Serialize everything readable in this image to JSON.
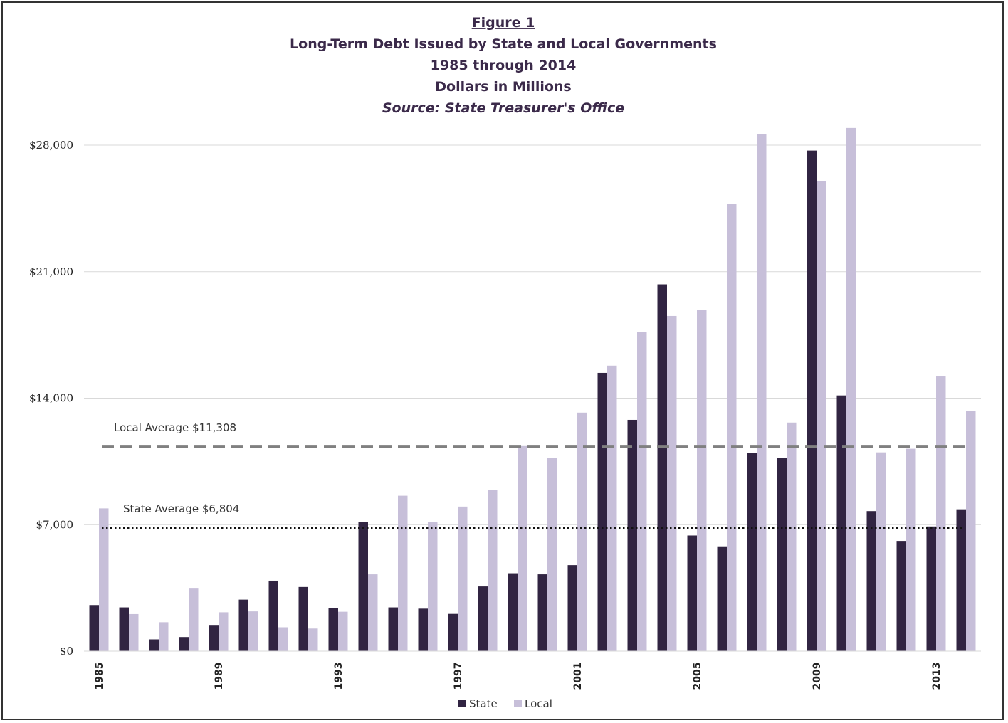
{
  "chart_data": {
    "type": "bar",
    "title_lines": [
      "Figure 1",
      "Long-Term Debt Issued by State and Local Governments",
      "1985 through 2014",
      "Dollars in Millions",
      "Source:  State Treasurer's Office"
    ],
    "years": [
      1985,
      1986,
      1987,
      1988,
      1989,
      1990,
      1991,
      1992,
      1993,
      1994,
      1995,
      1996,
      1997,
      1998,
      1999,
      2000,
      2001,
      2002,
      2003,
      2004,
      2005,
      2006,
      2007,
      2008,
      2009,
      2010,
      2011,
      2012,
      2013,
      2014
    ],
    "x_tick_labels": [
      "1985",
      "1989",
      "1993",
      "1997",
      "2001",
      "2005",
      "2009",
      "2013"
    ],
    "x_tick_years": [
      1985,
      1989,
      1993,
      1997,
      2001,
      2005,
      2009,
      2013
    ],
    "series": [
      {
        "name": "State",
        "color": "#312442",
        "values": [
          2550,
          2420,
          650,
          780,
          1450,
          2850,
          3900,
          3550,
          2400,
          7150,
          2420,
          2350,
          2060,
          3580,
          4310,
          4250,
          4760,
          15400,
          12800,
          20300,
          6400,
          5800,
          10950,
          10700,
          27700,
          14150,
          7750,
          6100,
          6900,
          7850
        ]
      },
      {
        "name": "Local",
        "color": "#c7bfd9",
        "values": [
          7900,
          2050,
          1600,
          3500,
          2150,
          2200,
          1320,
          1250,
          2180,
          4250,
          8600,
          7150,
          8000,
          8900,
          11350,
          10700,
          13200,
          15800,
          17650,
          18550,
          18900,
          24750,
          28600,
          12650,
          26000,
          28950,
          11000,
          11200,
          15200,
          13300
        ]
      }
    ],
    "ylim": [
      0,
      28000
    ],
    "y_ticks": [
      0,
      7000,
      14000,
      21000,
      28000
    ],
    "y_tick_labels": [
      "$0",
      "$7,000",
      "$14,000",
      "$21,000",
      "$28,000"
    ],
    "averages": [
      {
        "label": "Local Average $11,308",
        "value": 11308,
        "style": "dashed",
        "color": "#808080"
      },
      {
        "label": "State Average $6,804",
        "value": 6804,
        "style": "dotted",
        "color": "#111111"
      }
    ],
    "legend_position": "bottom-center",
    "grid": true
  }
}
